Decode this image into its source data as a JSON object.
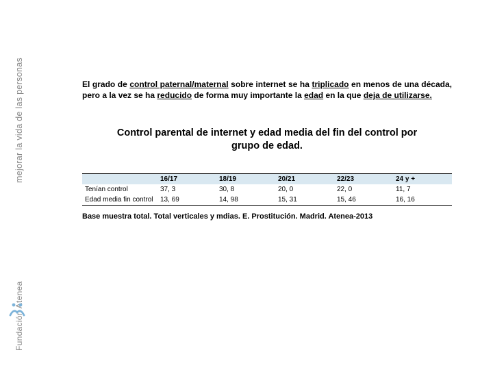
{
  "sidebar": {
    "line1": "mejorar la vida de las personas",
    "line2": "Fundación Atenea",
    "logo_color": "#7db3d9"
  },
  "intro": {
    "parts": [
      {
        "t": "El grado de ",
        "b": true
      },
      {
        "t": "control paternal/maternal",
        "b": true,
        "u": true
      },
      {
        "t": " sobre internet se ha ",
        "b": true
      },
      {
        "t": "triplicado",
        "b": true,
        "u": true
      },
      {
        "t": " en menos de una década, pero a la vez se ha ",
        "b": true
      },
      {
        "t": "reducido",
        "b": true,
        "u": true
      },
      {
        "t": " de forma muy importante la ",
        "b": true
      },
      {
        "t": "edad",
        "b": true,
        "u": true
      },
      {
        "t": " en la que ",
        "b": true
      },
      {
        "t": "deja de utilizarse.",
        "b": true,
        "u": true
      }
    ]
  },
  "chart_title": "Control parental de internet y edad media del fin del control por grupo de edad.",
  "table": {
    "type": "table",
    "header_bg": "#d9e8f1",
    "border_color": "#000000",
    "font_size": 10,
    "columns": [
      "",
      "16/17",
      "18/19",
      "20/21",
      "22/23",
      "24 y +"
    ],
    "rows": [
      [
        "Tenían control",
        "37, 3",
        "30, 8",
        "20, 0",
        "22, 0",
        "11, 7"
      ],
      [
        "Edad media fin control",
        "13, 69",
        "14, 98",
        "15, 31",
        "15, 46",
        "16, 16"
      ]
    ]
  },
  "footnote": "Base muestra total. Total verticales y mdias. E. Prostitución. Madrid. Atenea-2013"
}
